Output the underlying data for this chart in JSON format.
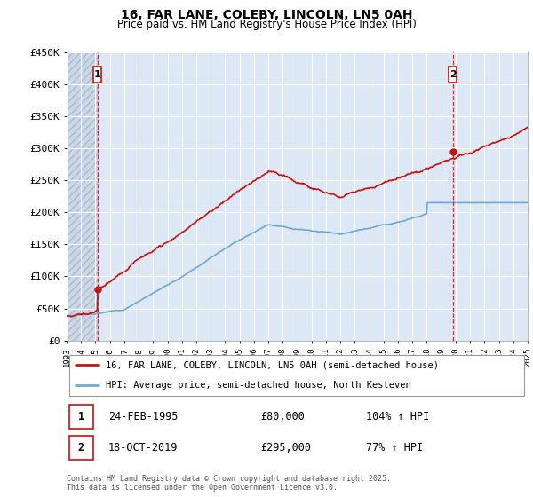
{
  "title": "16, FAR LANE, COLEBY, LINCOLN, LN5 0AH",
  "subtitle": "Price paid vs. HM Land Registry's House Price Index (HPI)",
  "ylim": [
    0,
    450000
  ],
  "yticks": [
    0,
    50000,
    100000,
    150000,
    200000,
    250000,
    300000,
    350000,
    400000,
    450000
  ],
  "x_start_year": 1993,
  "x_end_year": 2025,
  "hpi_color": "#6fa8d0",
  "price_color": "#cc1111",
  "marker1_x": 1995.15,
  "marker1_price": 80000,
  "marker2_x": 2019.8,
  "marker2_price": 295000,
  "legend_line1": "16, FAR LANE, COLEBY, LINCOLN, LN5 0AH (semi-detached house)",
  "legend_line2": "HPI: Average price, semi-detached house, North Kesteven",
  "ann1_date": "24-FEB-1995",
  "ann1_price": "£80,000",
  "ann1_pct": "104% ↑ HPI",
  "ann2_date": "18-OCT-2019",
  "ann2_price": "£295,000",
  "ann2_pct": "77% ↑ HPI",
  "footer": "Contains HM Land Registry data © Crown copyright and database right 2025.\nThis data is licensed under the Open Government Licence v3.0.",
  "bg_color": "#dce8f5",
  "hatch_bg": "#ccd8e8",
  "grid_color": "#ffffff"
}
